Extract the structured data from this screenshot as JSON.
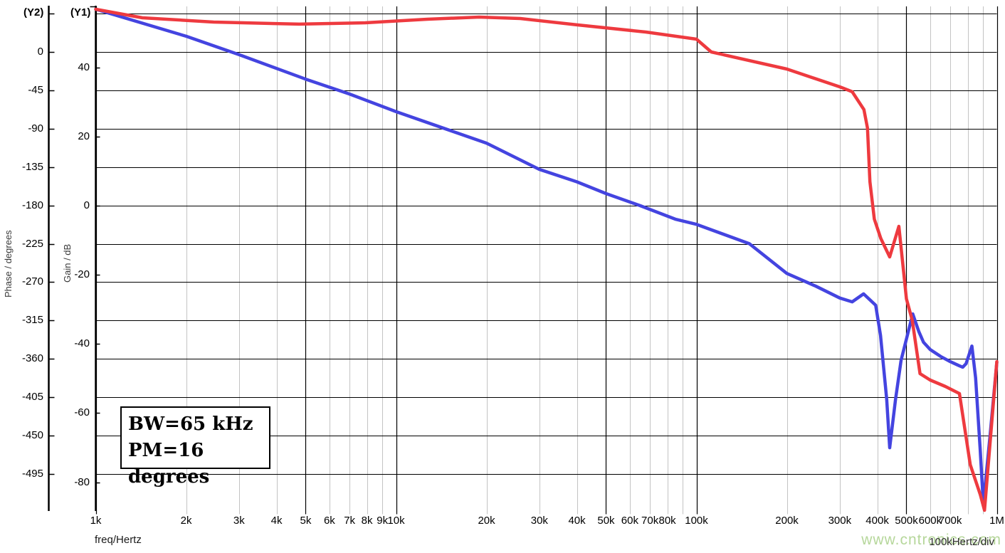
{
  "chart_data": {
    "type": "line",
    "title": "",
    "x_scale": "log",
    "x_range_hz": [
      1000,
      1000000
    ],
    "corner": {
      "y2": "(Y2)",
      "y1": "(Y1)"
    },
    "axis_labels": {
      "y2": "Phase / degrees",
      "y1": "Gain / dB",
      "x": "freq/Hertz",
      "x_div": "100kHertz/div"
    },
    "x_ticks": [
      {
        "hz": 1000,
        "label": "1k",
        "major": true
      },
      {
        "hz": 2000,
        "label": "2k",
        "major": false
      },
      {
        "hz": 3000,
        "label": "3k",
        "major": false
      },
      {
        "hz": 4000,
        "label": "4k",
        "major": false
      },
      {
        "hz": 5000,
        "label": "5k",
        "major": true
      },
      {
        "hz": 6000,
        "label": "6k",
        "major": false
      },
      {
        "hz": 7000,
        "label": "7k",
        "major": false
      },
      {
        "hz": 8000,
        "label": "8k",
        "major": false
      },
      {
        "hz": 9000,
        "label": "9k",
        "major": false
      },
      {
        "hz": 10000,
        "label": "10k",
        "major": true
      },
      {
        "hz": 20000,
        "label": "20k",
        "major": false
      },
      {
        "hz": 30000,
        "label": "30k",
        "major": false
      },
      {
        "hz": 40000,
        "label": "40k",
        "major": false
      },
      {
        "hz": 50000,
        "label": "50k",
        "major": true
      },
      {
        "hz": 60000,
        "label": "60k",
        "major": false
      },
      {
        "hz": 70000,
        "label": "70k",
        "major": false
      },
      {
        "hz": 80000,
        "label": "80k",
        "major": false
      },
      {
        "hz": 90000,
        "label": "",
        "major": false
      },
      {
        "hz": 100000,
        "label": "100k",
        "major": true
      },
      {
        "hz": 200000,
        "label": "200k",
        "major": false
      },
      {
        "hz": 300000,
        "label": "300k",
        "major": false
      },
      {
        "hz": 400000,
        "label": "400k",
        "major": false
      },
      {
        "hz": 500000,
        "label": "500k",
        "major": true
      },
      {
        "hz": 600000,
        "label": "600k",
        "major": false
      },
      {
        "hz": 700000,
        "label": "700k",
        "major": false
      },
      {
        "hz": 800000,
        "label": "",
        "major": false
      },
      {
        "hz": 900000,
        "label": "",
        "major": false
      },
      {
        "hz": 1000000,
        "label": "1M",
        "major": true
      }
    ],
    "y2_axis": {
      "tick_values": [
        0,
        -45,
        -90,
        -135,
        -180,
        -225,
        -270,
        -315,
        -360,
        -405,
        -450,
        -495
      ],
      "grid_values": [
        45,
        0,
        -45,
        -90,
        -135,
        -180,
        -225,
        -270,
        -315,
        -360,
        -405,
        -450,
        -495
      ],
      "unit": "degrees"
    },
    "y1_axis": {
      "tick_values": [
        40,
        20,
        0,
        -20,
        -40,
        -60,
        -80
      ],
      "unit": "dB"
    },
    "series": [
      {
        "name": "gain",
        "axis": "y1",
        "color": "#4444e0",
        "points_khz_value": [
          [
            1,
            56.8
          ],
          [
            2,
            49.0
          ],
          [
            3,
            43.7
          ],
          [
            5,
            36.6
          ],
          [
            7,
            32.3
          ],
          [
            10,
            27.2
          ],
          [
            20,
            18.1
          ],
          [
            30,
            10.5
          ],
          [
            40,
            6.9
          ],
          [
            50,
            3.5
          ],
          [
            65,
            0.0
          ],
          [
            85,
            -3.9
          ],
          [
            100,
            -5.4
          ],
          [
            150,
            -11.0
          ],
          [
            200,
            -19.6
          ],
          [
            250,
            -23.3
          ],
          [
            300,
            -26.7
          ],
          [
            330,
            -27.8
          ],
          [
            360,
            -25.5
          ],
          [
            395,
            -28.8
          ],
          [
            410,
            -37.5
          ],
          [
            430,
            -56.0
          ],
          [
            440,
            -70.0
          ],
          [
            460,
            -56.0
          ],
          [
            480,
            -44.7
          ],
          [
            525,
            -31.3
          ],
          [
            550,
            -36.4
          ],
          [
            570,
            -39.5
          ],
          [
            600,
            -41.6
          ],
          [
            650,
            -43.6
          ],
          [
            700,
            -45.1
          ],
          [
            750,
            -46.3
          ],
          [
            770,
            -46.7
          ],
          [
            790,
            -45.7
          ],
          [
            826,
            -40.6
          ],
          [
            850,
            -49.8
          ],
          [
            880,
            -70.4
          ],
          [
            902,
            -86.3
          ],
          [
            950,
            -66.3
          ],
          [
            1000,
            -45.3
          ]
        ]
      },
      {
        "name": "phase",
        "axis": "y2",
        "color": "#ee3a3f",
        "points_khz_value": [
          [
            1,
            50.1
          ],
          [
            1.43,
            40.1
          ],
          [
            2.47,
            35.1
          ],
          [
            4.76,
            32.6
          ],
          [
            7.9,
            34.2
          ],
          [
            12.7,
            38.4
          ],
          [
            18.9,
            40.9
          ],
          [
            25.9,
            39.2
          ],
          [
            40.2,
            31.7
          ],
          [
            67.8,
            23.4
          ],
          [
            100,
            15.0
          ],
          [
            112,
            0.0
          ],
          [
            200,
            -20.0
          ],
          [
            300,
            -40.9
          ],
          [
            330,
            -46.7
          ],
          [
            361,
            -67.6
          ],
          [
            371,
            -89.3
          ],
          [
            378,
            -152.0
          ],
          [
            391,
            -196.0
          ],
          [
            411,
            -218.7
          ],
          [
            440,
            -240.4
          ],
          [
            472,
            -204.5
          ],
          [
            500,
            -289.6
          ],
          [
            523,
            -314.7
          ],
          [
            555,
            -377.3
          ],
          [
            600,
            -384.8
          ],
          [
            674,
            -392.3
          ],
          [
            751,
            -400.7
          ],
          [
            816,
            -484.1
          ],
          [
            881,
            -519.2
          ],
          [
            910,
            -537.6
          ],
          [
            1000,
            -363.1
          ]
        ]
      }
    ],
    "annotation": {
      "line1": "BW=65 kHz",
      "line2": "PM=16 degrees"
    },
    "watermark": "www.cntronics.com",
    "colors": {
      "grid_minor": "#c3c3c3",
      "grid_major": "#000000",
      "grid_horizontal": "#000000",
      "axis": "#000000",
      "watermark_green": "#b6d79b"
    }
  }
}
